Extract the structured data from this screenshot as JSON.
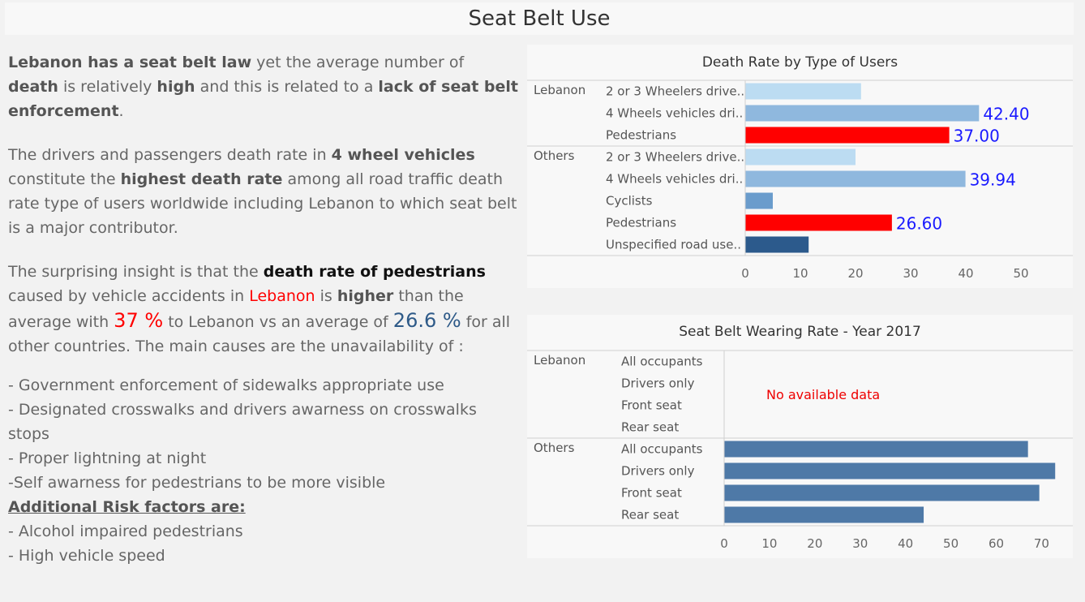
{
  "page_title": "Seat Belt Use",
  "narrative": {
    "p1": {
      "s1": "Lebanon has a seat belt law",
      "s2": " yet the average number of ",
      "s3": "death",
      "s4": " is relatively ",
      "s5": "high",
      "s6": " and this is related to a ",
      "s7": "lack of seat belt enforcement",
      "s8": "."
    },
    "p2": {
      "s1": "The  drivers and passengers death rate in ",
      "s2": "4 wheel vehicles",
      "s3": " constitute the ",
      "s4": "highest death rate",
      "s5": " among all road traffic death rate type of users worldwide including Lebanon to which seat belt is a major contributor."
    },
    "p3": {
      "s1": "The surprising insight is that the ",
      "s2": "death rate of pedestrians",
      "s3": " caused by vehicle accidents in ",
      "s4": "Lebanon",
      "s5": " is ",
      "s6": "higher",
      "s7": " than the average with ",
      "s8": "37 %",
      "s9": " to Lebanon vs an average of ",
      "s10": "26.6 %",
      "s11": "  for all other countries. The main causes are the unavailability of :"
    },
    "list": [
      "- Government enforcement of sidewalks appropriate use",
      "- Designated crosswalks and drivers awarness on crosswalks stops",
      "- Proper lightning at night",
      "-Self awarness for pedestrians to be more visible"
    ],
    "risk_heading": "Additional Risk factors are:",
    "risk_list": [
      "- Alcohol impaired pedestrians",
      "- High vehicle speed"
    ]
  },
  "chart_data": [
    {
      "type": "bar",
      "orientation": "horizontal",
      "title": "Death Rate by Type of Users",
      "groups": [
        {
          "name": "Lebanon",
          "bars": [
            {
              "label": "2 or 3 Wheelers drive..",
              "value": 21.0,
              "color": "#bcdcf2",
              "data_label": ""
            },
            {
              "label": "4 Wheels vehicles dri..",
              "value": 42.4,
              "color": "#8fb8de",
              "data_label": "42.40"
            },
            {
              "label": "Pedestrians",
              "value": 37.0,
              "color": "#ff0000",
              "data_label": "37.00"
            }
          ]
        },
        {
          "name": "Others",
          "bars": [
            {
              "label": "2 or 3 Wheelers drive..",
              "value": 20.0,
              "color": "#bcdcf2",
              "data_label": ""
            },
            {
              "label": "4 Wheels vehicles dri..",
              "value": 39.94,
              "color": "#8fb8de",
              "data_label": "39.94"
            },
            {
              "label": "Cyclists",
              "value": 5.0,
              "color": "#6a9ccc",
              "data_label": ""
            },
            {
              "label": "Pedestrians",
              "value": 26.6,
              "color": "#ff0000",
              "data_label": "26.60"
            },
            {
              "label": "Unspecified road use..",
              "value": 11.5,
              "color": "#2c5a8c",
              "data_label": ""
            }
          ]
        }
      ],
      "xlim": [
        0,
        55
      ],
      "xticks": [
        "0",
        "10",
        "20",
        "30",
        "40",
        "50"
      ],
      "data_label_color": "#1a1aff"
    },
    {
      "type": "bar",
      "orientation": "horizontal",
      "title": "Seat Belt Wearing Rate - Year 2017",
      "groups": [
        {
          "name": "Lebanon",
          "note": "No available data",
          "bars": [
            {
              "label": "All occupants",
              "value": null
            },
            {
              "label": "Drivers only",
              "value": null
            },
            {
              "label": "Front seat",
              "value": null
            },
            {
              "label": "Rear seat",
              "value": null
            }
          ]
        },
        {
          "name": "Others",
          "bars": [
            {
              "label": "All occupants",
              "value": 67.0
            },
            {
              "label": "Drivers only",
              "value": 73.0
            },
            {
              "label": "Front seat",
              "value": 69.5
            },
            {
              "label": "Rear seat",
              "value": 44.0
            }
          ]
        }
      ],
      "xlim": [
        0,
        76
      ],
      "xticks": [
        "0",
        "10",
        "20",
        "30",
        "40",
        "50",
        "60",
        "70"
      ],
      "bar_color": "#4e79a7",
      "note_color": "#ee0000"
    }
  ]
}
